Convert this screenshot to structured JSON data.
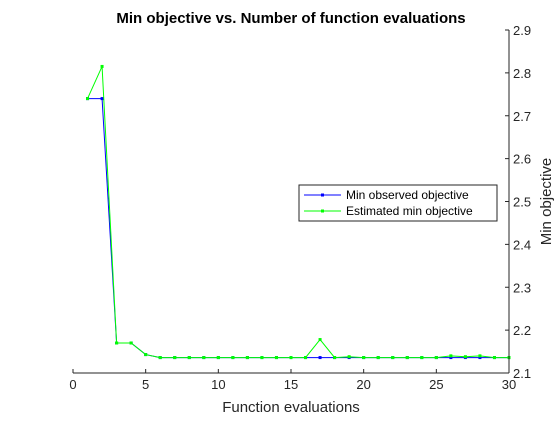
{
  "chart_data": {
    "type": "line",
    "title": "Min objective vs. Number of function evaluations",
    "xlabel": "Function evaluations",
    "ylabel": "Min objective",
    "xlim": [
      0,
      30
    ],
    "ylim": [
      2.1,
      2.9
    ],
    "xticks": [
      0,
      5,
      10,
      15,
      20,
      25,
      30
    ],
    "yticks": [
      2.1,
      2.2,
      2.3,
      2.4,
      2.5,
      2.6,
      2.7,
      2.8,
      2.9
    ],
    "y_axis_side": "right",
    "grid": false,
    "legend_position": "center-right",
    "x": [
      1,
      2,
      3,
      4,
      5,
      6,
      7,
      8,
      9,
      10,
      11,
      12,
      13,
      14,
      15,
      16,
      17,
      18,
      19,
      20,
      21,
      22,
      23,
      24,
      25,
      26,
      27,
      28,
      29,
      30
    ],
    "series": [
      {
        "name": "Min observed objective",
        "color": "#0000ff",
        "values": [
          2.74,
          2.74,
          2.17,
          2.17,
          2.143,
          2.136,
          2.136,
          2.136,
          2.136,
          2.136,
          2.136,
          2.136,
          2.136,
          2.136,
          2.136,
          2.136,
          2.136,
          2.136,
          2.136,
          2.136,
          2.136,
          2.136,
          2.136,
          2.136,
          2.136,
          2.136,
          2.136,
          2.136,
          2.136,
          2.136
        ]
      },
      {
        "name": "Estimated min objective",
        "color": "#00ff00",
        "values": [
          2.74,
          2.815,
          2.17,
          2.17,
          2.143,
          2.136,
          2.136,
          2.136,
          2.136,
          2.136,
          2.136,
          2.136,
          2.136,
          2.136,
          2.136,
          2.136,
          2.178,
          2.136,
          2.138,
          2.136,
          2.136,
          2.136,
          2.136,
          2.136,
          2.136,
          2.14,
          2.138,
          2.14,
          2.136,
          2.136
        ]
      }
    ]
  }
}
